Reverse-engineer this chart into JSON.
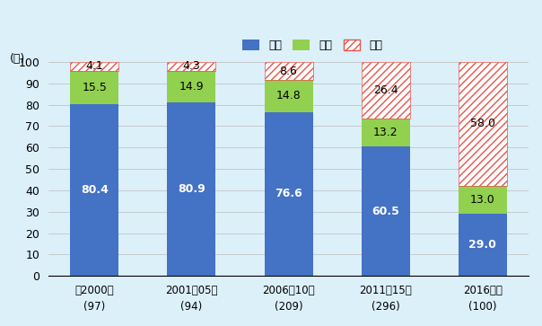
{
  "categories": [
    "～2000年\n(97)",
    "2001～05年\n(94)",
    "2006～10年\n(209)",
    "2011～15年\n(296)",
    "2016年～\n(100)"
  ],
  "black": [
    80.4,
    80.9,
    76.6,
    60.5,
    29.0
  ],
  "balanced": [
    15.5,
    14.9,
    14.8,
    13.2,
    13.0
  ],
  "red": [
    4.1,
    4.3,
    8.6,
    26.4,
    58.0
  ],
  "black_color": "#4472C4",
  "balanced_color": "#92D050",
  "red_hatch_color": "#E8534A",
  "ylabel": "(％)",
  "ylim": [
    0,
    100
  ],
  "yticks": [
    0,
    10,
    20,
    30,
    40,
    50,
    60,
    70,
    80,
    90,
    100
  ],
  "legend_labels": [
    "黒字",
    "均衡",
    "赤字"
  ],
  "background_color": "#DCF0FA",
  "bar_width": 0.5,
  "grid_color": "#BBBBBB"
}
